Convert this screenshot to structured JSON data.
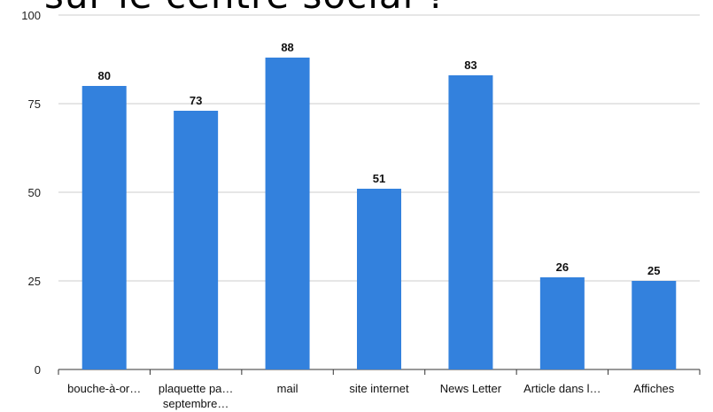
{
  "title": "sur le centre social ?",
  "chart_data": {
    "type": "bar",
    "title": "sur le centre social ?",
    "categories": [
      [
        "bouche-à-or…"
      ],
      [
        "plaquette pa…",
        "septembre…"
      ],
      [
        "mail"
      ],
      [
        "site internet"
      ],
      [
        "News Letter"
      ],
      [
        "Article dans l…"
      ],
      [
        "Affiches"
      ]
    ],
    "values": [
      80,
      73,
      88,
      51,
      83,
      26,
      25
    ],
    "ylim": [
      0,
      100
    ],
    "yticks": [
      0,
      25,
      50,
      75,
      100
    ],
    "xlabel": "",
    "ylabel": "",
    "grid": true,
    "legend": "none",
    "bar_color": "#3381dd",
    "grid_color": "#cccccc"
  }
}
